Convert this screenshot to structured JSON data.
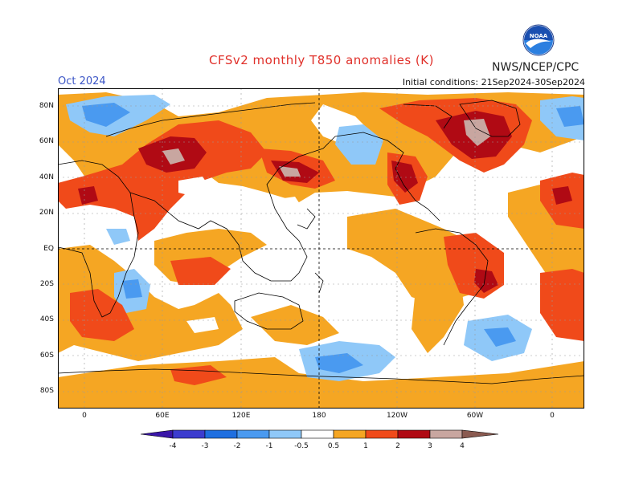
{
  "header": {
    "title": "CFSv2 monthly T850 anomalies (K)",
    "agency": "NWS/NCEP/CPC",
    "month": "Oct 2024",
    "initial_conditions": "Initial conditions: 21Sep2024-30Sep2024",
    "logo_text": "NOAA"
  },
  "axes": {
    "lat_labels": [
      "80N",
      "60N",
      "40N",
      "20N",
      "EQ",
      "20S",
      "40S",
      "60S",
      "80S"
    ],
    "lon_labels": [
      "0",
      "60E",
      "120E",
      "180",
      "120W",
      "60W",
      "0"
    ]
  },
  "legend": {
    "tick_labels": [
      "-4",
      "-3",
      "-2",
      "-1",
      "-0.5",
      "0.5",
      "1",
      "2",
      "3",
      "4"
    ],
    "colors": {
      "lt_neg4": "#3a16a8",
      "neg4_neg3": "#3c3ccf",
      "neg3_neg2": "#1f6fe0",
      "neg2_neg1": "#4a9af0",
      "neg1_neg05": "#8fc8f8",
      "neutral": "#ffffff",
      "p05_1": "#f5a623",
      "p1_2": "#f04a1a",
      "p2_3": "#b00a14",
      "p3_4": "#c8a6a0",
      "gt4": "#8a5a50"
    }
  }
}
